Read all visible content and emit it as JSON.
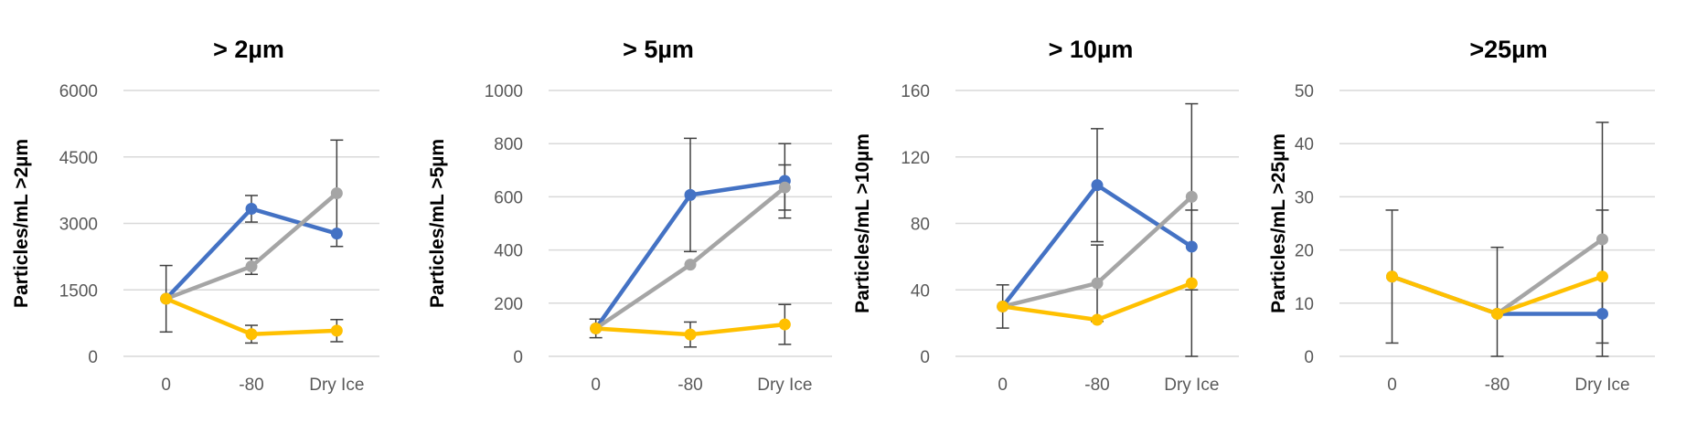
{
  "colors": {
    "series_blue": "#4472C4",
    "series_gray": "#A5A5A5",
    "series_yellow": "#FFC000",
    "gridline": "#D9D9D9",
    "error_bar": "#404040",
    "tick_text": "#595959"
  },
  "chart_data": [
    {
      "type": "line",
      "title": "> 2µm",
      "ylabel": "Particles/mL >2µm",
      "xlabel": "",
      "categories": [
        "0",
        "-80",
        "Dry Ice"
      ],
      "ylim": [
        0,
        6000
      ],
      "yticks": [
        "0",
        "1500",
        "3000",
        "4500",
        "6000"
      ],
      "grid": true,
      "series": [
        {
          "name": "blue",
          "color": "#4472C4",
          "values": [
            1300,
            3330,
            2770
          ],
          "errors": [
            null,
            300,
            null
          ]
        },
        {
          "name": "gray",
          "color": "#A5A5A5",
          "values": [
            1300,
            2030,
            3680
          ],
          "errors": [
            null,
            180,
            1200
          ]
        },
        {
          "name": "yellow",
          "color": "#FFC000",
          "values": [
            1300,
            500,
            580
          ],
          "errors": [
            750,
            200,
            250
          ]
        }
      ]
    },
    {
      "type": "line",
      "title": "> 5µm",
      "ylabel": "Particles/mL >5µm",
      "xlabel": "",
      "categories": [
        "0",
        "-80",
        "Dry Ice"
      ],
      "ylim": [
        0,
        1000
      ],
      "yticks": [
        "0",
        "200",
        "400",
        "600",
        "800",
        "1000"
      ],
      "grid": true,
      "series": [
        {
          "name": "blue",
          "color": "#4472C4",
          "values": [
            105,
            607,
            660
          ],
          "errors": [
            null,
            213,
            140
          ]
        },
        {
          "name": "gray",
          "color": "#A5A5A5",
          "values": [
            105,
            345,
            635
          ],
          "errors": [
            null,
            null,
            85
          ]
        },
        {
          "name": "yellow",
          "color": "#FFC000",
          "values": [
            105,
            82,
            120
          ],
          "errors": [
            35,
            47,
            75
          ]
        }
      ]
    },
    {
      "type": "line",
      "title": "> 10µm",
      "ylabel": "Particles/mL >10µm",
      "xlabel": "",
      "categories": [
        "0",
        "-80",
        "Dry Ice"
      ],
      "ylim": [
        0,
        160
      ],
      "yticks": [
        "0",
        "40",
        "80",
        "120",
        "160"
      ],
      "grid": true,
      "series": [
        {
          "name": "blue",
          "color": "#4472C4",
          "values": [
            30,
            103,
            66
          ],
          "errors": [
            null,
            34,
            null
          ]
        },
        {
          "name": "gray",
          "color": "#A5A5A5",
          "values": [
            30,
            44,
            96
          ],
          "errors": [
            13,
            23,
            56
          ]
        },
        {
          "name": "yellow",
          "color": "#FFC000",
          "values": [
            30,
            22,
            44
          ],
          "errors": [
            null,
            null,
            44
          ]
        }
      ]
    },
    {
      "type": "line",
      "title": ">25µm",
      "ylabel": "Particles/mL >25µm",
      "xlabel": "",
      "categories": [
        "0",
        "-80",
        "Dry Ice"
      ],
      "ylim": [
        0,
        50
      ],
      "yticks": [
        "0",
        "10",
        "20",
        "30",
        "40",
        "50"
      ],
      "grid": true,
      "series": [
        {
          "name": "blue",
          "color": "#4472C4",
          "values": [
            15,
            8,
            8
          ],
          "errors": [
            null,
            null,
            null
          ]
        },
        {
          "name": "gray",
          "color": "#A5A5A5",
          "values": [
            15,
            8,
            22
          ],
          "errors": [
            null,
            null,
            22
          ]
        },
        {
          "name": "yellow",
          "color": "#FFC000",
          "values": [
            15,
            8,
            15
          ],
          "errors": [
            12.5,
            12.5,
            12.5
          ]
        }
      ]
    }
  ]
}
